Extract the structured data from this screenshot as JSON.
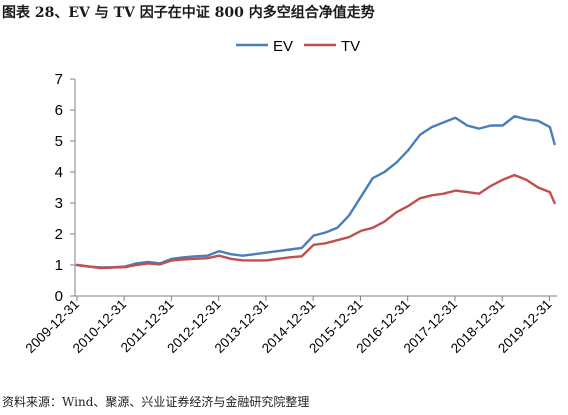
{
  "header": {
    "title": "图表 28、EV 与 TV 因子在中证 800 内多空组合净值走势"
  },
  "footer": {
    "source": "资料来源：Wind、聚源、兴业证券经济与金融研究院整理"
  },
  "colors": {
    "ev": "#4a7ebb",
    "tv": "#c0504d"
  },
  "chart_data": {
    "type": "line",
    "title": "",
    "xlabel": "",
    "ylabel": "",
    "ylim": [
      0,
      7
    ],
    "yticks": [
      "0",
      "1",
      "2",
      "3",
      "4",
      "5",
      "6",
      "7"
    ],
    "xticks": [
      "2009-12-31",
      "2010-12-31",
      "2011-12-31",
      "2012-12-31",
      "2013-12-31",
      "2014-12-31",
      "2015-12-31",
      "2016-12-31",
      "2017-12-31",
      "2018-12-31",
      "2019-12-31"
    ],
    "grid": false,
    "legend_position": "top-center",
    "x": [
      2009.99,
      2010.25,
      2010.5,
      2010.75,
      2011.0,
      2011.25,
      2011.5,
      2011.75,
      2012.0,
      2012.25,
      2012.5,
      2012.75,
      2013.0,
      2013.25,
      2013.5,
      2013.75,
      2014.0,
      2014.25,
      2014.5,
      2014.75,
      2015.0,
      2015.25,
      2015.5,
      2015.75,
      2016.0,
      2016.25,
      2016.5,
      2016.75,
      2017.0,
      2017.25,
      2017.5,
      2017.75,
      2018.0,
      2018.25,
      2018.5,
      2018.75,
      2019.0,
      2019.25,
      2019.5,
      2019.75,
      2020.0,
      2020.1
    ],
    "series": [
      {
        "name": "EV",
        "values": [
          1.0,
          0.95,
          0.92,
          0.93,
          0.95,
          1.05,
          1.1,
          1.05,
          1.2,
          1.25,
          1.28,
          1.3,
          1.45,
          1.35,
          1.3,
          1.35,
          1.4,
          1.45,
          1.5,
          1.55,
          1.95,
          2.05,
          2.2,
          2.6,
          3.2,
          3.8,
          4.0,
          4.3,
          4.7,
          5.2,
          5.45,
          5.6,
          5.75,
          5.5,
          5.4,
          5.5,
          5.5,
          5.8,
          5.7,
          5.65,
          5.45,
          4.9
        ]
      },
      {
        "name": "TV",
        "values": [
          1.0,
          0.95,
          0.9,
          0.92,
          0.93,
          1.0,
          1.05,
          1.02,
          1.15,
          1.18,
          1.2,
          1.22,
          1.3,
          1.2,
          1.15,
          1.15,
          1.15,
          1.2,
          1.25,
          1.28,
          1.65,
          1.7,
          1.8,
          1.9,
          2.1,
          2.2,
          2.4,
          2.7,
          2.9,
          3.15,
          3.25,
          3.3,
          3.4,
          3.35,
          3.3,
          3.55,
          3.75,
          3.9,
          3.75,
          3.5,
          3.35,
          3.0
        ]
      }
    ]
  }
}
